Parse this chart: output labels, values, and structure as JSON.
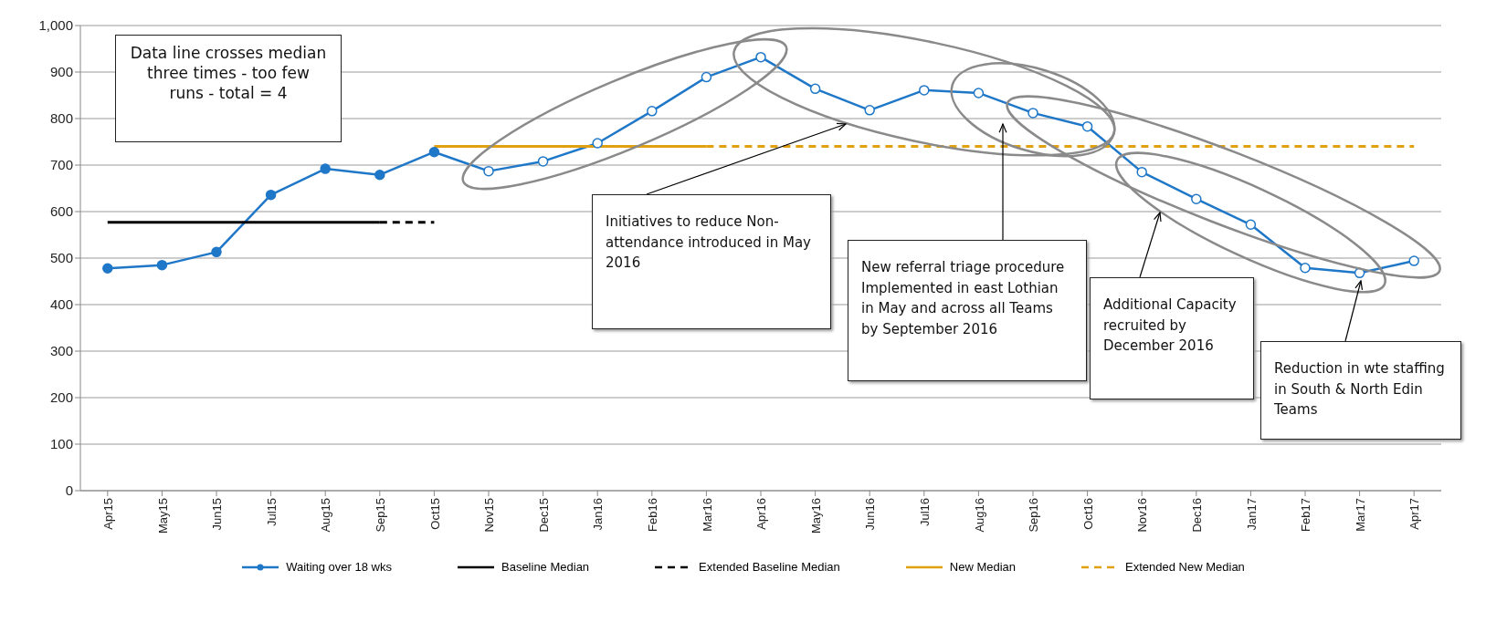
{
  "chart_data": {
    "type": "line",
    "categories": [
      "Apr15",
      "May15",
      "Jun15",
      "Jul15",
      "Aug15",
      "Sep15",
      "Oct15",
      "Nov15",
      "Dec15",
      "Jan16",
      "Feb16",
      "Mar16",
      "Apr16",
      "May16",
      "Jun16",
      "Jul16",
      "Aug16",
      "Sep16",
      "Oct16",
      "Nov16",
      "Dec16",
      "Jan17",
      "Feb17",
      "Mar17",
      "Apr17"
    ],
    "series": [
      {
        "name": "Waiting over 18 wks",
        "color": "#1f77c8",
        "marker": "circle",
        "values": [
          478,
          485,
          513,
          636,
          692,
          679,
          728,
          687,
          708,
          747,
          816,
          889,
          932,
          864,
          818,
          861,
          855,
          812,
          783,
          685,
          627,
          572,
          479,
          468,
          494
        ]
      },
      {
        "name": "Baseline Median",
        "color": "#000000",
        "values": [
          577,
          577,
          577,
          577,
          577,
          577,
          null,
          null,
          null,
          null,
          null,
          null,
          null,
          null,
          null,
          null,
          null,
          null,
          null,
          null,
          null,
          null,
          null,
          null,
          null
        ]
      },
      {
        "name": "Extended Baseline Median",
        "color": "#000000",
        "line_style": "dashed",
        "values": [
          null,
          null,
          null,
          null,
          null,
          577,
          577,
          null,
          null,
          null,
          null,
          null,
          null,
          null,
          null,
          null,
          null,
          null,
          null,
          null,
          null,
          null,
          null,
          null,
          null
        ]
      },
      {
        "name": "New Median",
        "color": "#e0a010",
        "values": [
          null,
          null,
          null,
          null,
          null,
          null,
          740,
          740,
          740,
          740,
          740,
          740,
          null,
          null,
          null,
          null,
          null,
          null,
          null,
          null,
          null,
          null,
          null,
          null,
          null
        ]
      },
      {
        "name": "Extended New Median",
        "color": "#e0a010",
        "line_style": "dashed",
        "values": [
          null,
          null,
          null,
          null,
          null,
          null,
          null,
          null,
          null,
          null,
          null,
          740,
          740,
          740,
          740,
          740,
          740,
          740,
          740,
          740,
          740,
          740,
          740,
          740,
          740
        ]
      }
    ],
    "ylim": [
      0,
      1000
    ],
    "yticks": [
      0,
      100,
      200,
      300,
      400,
      500,
      600,
      700,
      800,
      900,
      {
        "value": 1000,
        "label": "1,000"
      }
    ],
    "grid": "y",
    "legend": "bottom",
    "annotations": [
      "Data line crosses median three times - too few runs - total = 4",
      "Initiatives to reduce Non-attendance introduced in May 2016",
      "New referral triage procedure Implemented in east Lothian in May and across all Teams by September 2016",
      "Additional Capacity recruited by December 2016",
      "Reduction in wte staffing in South & North Edin Teams"
    ]
  }
}
